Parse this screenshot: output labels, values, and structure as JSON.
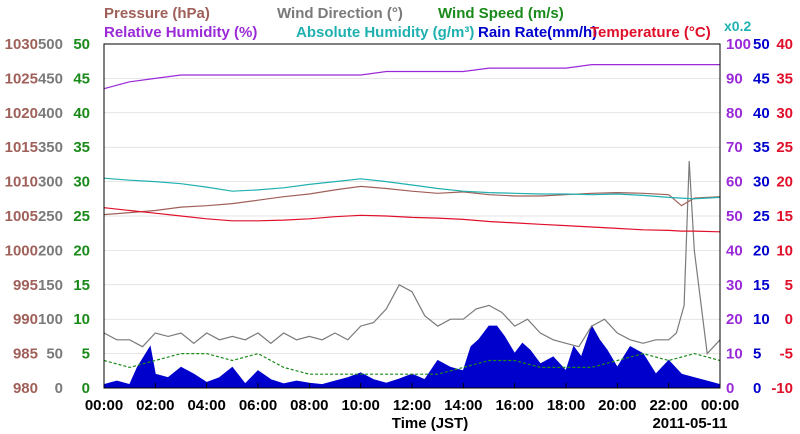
{
  "chart_data": {
    "type": "line",
    "date_label": "2011-05-11",
    "xlabel": "Time (JST)",
    "x_ticks": [
      "00:00",
      "02:00",
      "04:00",
      "06:00",
      "08:00",
      "10:00",
      "12:00",
      "14:00",
      "16:00",
      "18:00",
      "20:00",
      "22:00",
      "00:00"
    ],
    "legend": [
      {
        "text": "Pressure (hPa)",
        "color": "#a0605a"
      },
      {
        "text": "Wind Direction (°)",
        "color": "#7a7a7a"
      },
      {
        "text": "Wind Speed (m/s)",
        "color": "#1a8a1a"
      },
      {
        "text": "Relative Humidity (%)",
        "color": "#9a2ad8"
      },
      {
        "text": "Absolute Humidity (g/m³)",
        "color": "#20b0b0"
      },
      {
        "text": "Rain Rate(mm/h)",
        "color": "#0000cc"
      },
      {
        "text": "Temperature (°C)",
        "color": "#e0102a"
      }
    ],
    "abs_humidity_scale": "x0.2",
    "axes": {
      "pressure": {
        "color": "#a0605a",
        "range": [
          980,
          1030
        ],
        "ticks": [
          "1030",
          "1025",
          "1020",
          "1015",
          "1010",
          "1005",
          "1000",
          "995",
          "990",
          "985",
          "980"
        ]
      },
      "wind_dir": {
        "color": "#7a7a7a",
        "range": [
          0,
          500
        ],
        "ticks": [
          "500",
          "450",
          "400",
          "350",
          "300",
          "250",
          "200",
          "150",
          "100",
          "50",
          "0"
        ]
      },
      "wind_speed": {
        "color": "#1a8a1a",
        "range": [
          0,
          50
        ],
        "ticks": [
          "50",
          "45",
          "40",
          "35",
          "30",
          "25",
          "20",
          "15",
          "10",
          "5",
          "0"
        ]
      },
      "rel_humidity": {
        "color": "#9a2ad8",
        "range": [
          0,
          100
        ],
        "ticks": [
          "100",
          "90",
          "80",
          "70",
          "60",
          "50",
          "40",
          "30",
          "20",
          "10",
          "0"
        ]
      },
      "rain_rate": {
        "color": "#0000cc",
        "range": [
          0,
          50
        ],
        "ticks": [
          "50",
          "45",
          "40",
          "35",
          "30",
          "25",
          "20",
          "15",
          "10",
          "5",
          "0"
        ]
      },
      "temperature": {
        "color": "#e0102a",
        "range": [
          -10,
          40
        ],
        "ticks": [
          "40",
          "35",
          "30",
          "25",
          "20",
          "15",
          "10",
          "5",
          "0",
          "-5",
          "-10"
        ]
      }
    },
    "x_hours": [
      0,
      1,
      2,
      3,
      4,
      5,
      6,
      7,
      8,
      9,
      10,
      11,
      12,
      13,
      14,
      15,
      16,
      17,
      18,
      19,
      20,
      21,
      22,
      22.5,
      23,
      24
    ],
    "series": [
      {
        "name": "Relative Humidity (%)",
        "axis": "rel_humidity",
        "color": "#9a2ad8",
        "values": [
          87,
          89,
          90,
          91,
          91,
          91,
          91,
          91,
          91,
          91,
          91,
          92,
          92,
          92,
          92,
          93,
          93,
          93,
          93,
          94,
          94,
          94,
          94,
          94,
          94,
          94
        ]
      },
      {
        "name": "Pressure (hPa)",
        "axis": "pressure",
        "color": "#a0605a",
        "values": [
          1005.2,
          1005.5,
          1005.8,
          1006.3,
          1006.5,
          1006.8,
          1007.3,
          1007.8,
          1008.2,
          1008.8,
          1009.3,
          1009.0,
          1008.6,
          1008.3,
          1008.5,
          1008.1,
          1007.9,
          1007.9,
          1008.1,
          1008.3,
          1008.4,
          1008.3,
          1008.1,
          1006.5,
          1007.6,
          1007.8
        ]
      },
      {
        "name": "Absolute Humidity (g/m³)",
        "axis": "pressure",
        "color": "#20b0b0",
        "values": [
          1010.5,
          1010.2,
          1010.0,
          1009.7,
          1009.2,
          1008.6,
          1008.8,
          1009.1,
          1009.6,
          1010.0,
          1010.4,
          1010.0,
          1009.5,
          1009.0,
          1008.6,
          1008.4,
          1008.3,
          1008.2,
          1008.2,
          1008.1,
          1008.2,
          1008.0,
          1007.7,
          1007.6,
          1007.5,
          1007.7
        ]
      },
      {
        "name": "Temperature (°C)",
        "axis": "temperature",
        "color": "#e0102a",
        "values": [
          16.2,
          15.8,
          15.4,
          15.0,
          14.6,
          14.3,
          14.3,
          14.4,
          14.6,
          14.9,
          15.1,
          15.0,
          14.8,
          14.7,
          14.5,
          14.2,
          14.0,
          13.8,
          13.6,
          13.4,
          13.2,
          13.0,
          12.9,
          12.8,
          12.8,
          12.7
        ]
      }
    ],
    "wind_direction": {
      "axis": "wind_dir",
      "color": "#7a7a7a",
      "x": [
        0,
        0.5,
        1,
        1.5,
        2,
        2.5,
        3,
        3.5,
        4,
        4.5,
        5,
        5.5,
        6,
        6.5,
        7,
        7.5,
        8,
        8.5,
        9,
        9.5,
        10,
        10.5,
        11,
        11.5,
        12,
        12.5,
        13,
        13.5,
        14,
        14.5,
        15,
        15.5,
        16,
        16.5,
        17,
        17.5,
        18,
        18.5,
        19,
        19.5,
        20,
        20.5,
        21,
        21.5,
        22,
        22.3,
        22.6,
        22.8,
        23,
        23.5,
        24
      ],
      "values": [
        80,
        70,
        70,
        60,
        80,
        75,
        80,
        65,
        80,
        70,
        75,
        70,
        80,
        65,
        80,
        70,
        75,
        70,
        80,
        70,
        90,
        95,
        115,
        150,
        140,
        105,
        90,
        100,
        100,
        115,
        120,
        110,
        90,
        100,
        80,
        70,
        65,
        60,
        90,
        100,
        80,
        70,
        65,
        70,
        70,
        80,
        120,
        330,
        200,
        50,
        70
      ]
    },
    "wind_speed": {
      "axis": "wind_speed",
      "color": "#1a8a1a",
      "x": [
        0,
        1,
        2,
        3,
        4,
        5,
        6,
        7,
        8,
        9,
        10,
        11,
        12,
        13,
        14,
        15,
        16,
        17,
        18,
        19,
        20,
        21,
        22,
        23,
        24
      ],
      "values": [
        4,
        3,
        4,
        5,
        5,
        4,
        5,
        3,
        2,
        2,
        2,
        2,
        2,
        2,
        3,
        4,
        4,
        3,
        3,
        3,
        4,
        5,
        4,
        5,
        4
      ]
    },
    "rain_rate": {
      "axis": "rain_rate",
      "color": "#0000cc",
      "x": [
        0,
        0.5,
        1,
        1.3,
        1.8,
        2,
        2.5,
        3,
        3.5,
        4,
        4.5,
        5,
        5.5,
        6,
        6.5,
        7,
        7.5,
        8,
        8.5,
        9,
        9.5,
        10,
        10.5,
        11,
        11.5,
        12,
        12.5,
        13,
        13.5,
        14,
        14.3,
        14.6,
        15,
        15.3,
        15.6,
        16,
        16.3,
        16.6,
        17,
        17.5,
        18,
        18.3,
        18.6,
        19,
        19.3,
        19.6,
        20,
        20.5,
        21,
        21.5,
        22,
        22.5,
        23,
        23.5,
        24
      ],
      "values": [
        0.5,
        1,
        0.5,
        3,
        6,
        2,
        1.5,
        3,
        2,
        0.8,
        1.5,
        3,
        0.6,
        2.5,
        1.2,
        0.6,
        1,
        0.7,
        0.5,
        1,
        1.5,
        2.2,
        1.2,
        0.7,
        1.3,
        2,
        1.2,
        4,
        3,
        2.5,
        6,
        7,
        9,
        9,
        7.5,
        5,
        6.5,
        5.5,
        3.5,
        4.5,
        2.5,
        6,
        4.5,
        9,
        7,
        5.5,
        3,
        6,
        5,
        2,
        4,
        2,
        1.5,
        1,
        0.5
      ]
    }
  }
}
